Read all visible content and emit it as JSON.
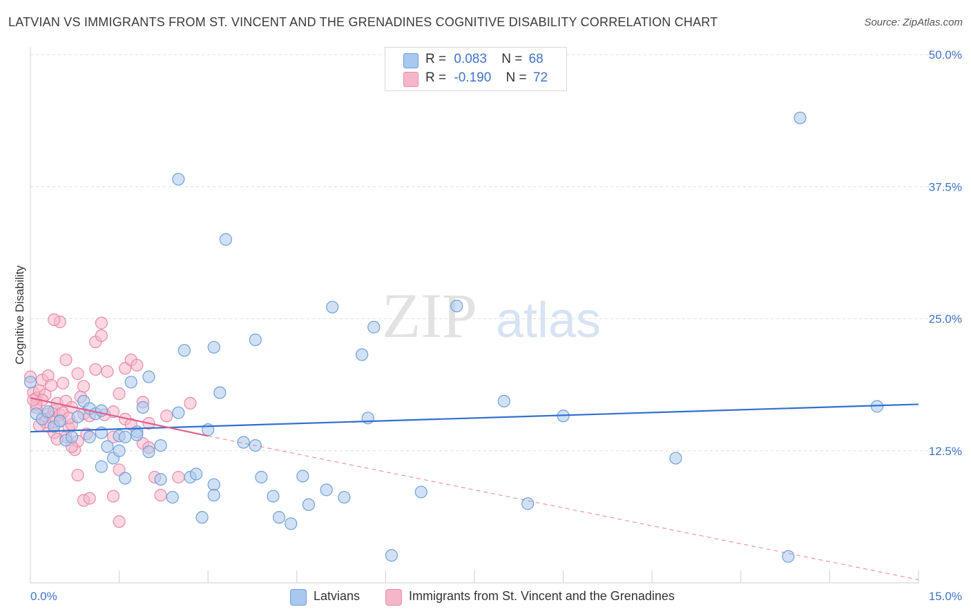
{
  "title": "LATVIAN VS IMMIGRANTS FROM ST. VINCENT AND THE GRENADINES COGNITIVE DISABILITY CORRELATION CHART",
  "source": "Source: ZipAtlas.com",
  "watermark": {
    "zip": "ZIP",
    "atlas": "atlas"
  },
  "colors": {
    "latvian_fill": "#a9c8ef",
    "latvian_stroke": "#6f9fd8",
    "latvian_line": "#2f6fce",
    "svg_fill": "#f6b6ca",
    "svg_stroke": "#e88aa8",
    "svg_line": "#e0608a",
    "tick_text": "#3f73c8",
    "grid": "#dddddd"
  },
  "legend": {
    "rows": [
      {
        "r_label": "R =",
        "r_value": "0.083",
        "n_label": "N =",
        "n_value": "68"
      },
      {
        "r_label": "R =",
        "r_value": "-0.190",
        "n_label": "N =",
        "n_value": "72"
      }
    ]
  },
  "bottom_legend": {
    "series1": "Latvians",
    "series2": "Immigrants from St. Vincent and the Grenadines"
  },
  "chart_data": {
    "type": "scatter",
    "ylabel": "Cognitive Disability",
    "xlim": [
      0,
      15
    ],
    "ylim": [
      0,
      50
    ],
    "x_tick_labels": [
      "0.0%",
      "15.0%"
    ],
    "y_ticks": [
      12.5,
      25.0,
      37.5,
      50.0
    ],
    "y_tick_labels": [
      "12.5%",
      "25.0%",
      "37.5%",
      "50.0%"
    ],
    "grid": true,
    "series": [
      {
        "name": "Latvians",
        "points": [
          [
            0.0,
            19.0
          ],
          [
            0.1,
            16.0
          ],
          [
            0.2,
            15.5
          ],
          [
            0.3,
            16.2
          ],
          [
            0.4,
            14.8
          ],
          [
            0.5,
            15.3
          ],
          [
            0.6,
            13.5
          ],
          [
            0.7,
            13.8
          ],
          [
            0.8,
            15.7
          ],
          [
            0.9,
            17.2
          ],
          [
            1.0,
            16.5
          ],
          [
            1.0,
            13.8
          ],
          [
            1.1,
            16.0
          ],
          [
            1.2,
            14.2
          ],
          [
            1.2,
            11.0
          ],
          [
            1.3,
            12.9
          ],
          [
            1.4,
            11.8
          ],
          [
            1.5,
            12.5
          ],
          [
            1.5,
            13.9
          ],
          [
            1.6,
            13.8
          ],
          [
            1.6,
            9.9
          ],
          [
            1.7,
            19.0
          ],
          [
            1.8,
            14.3
          ],
          [
            1.8,
            14.0
          ],
          [
            1.9,
            16.6
          ],
          [
            2.0,
            12.4
          ],
          [
            2.0,
            19.5
          ],
          [
            2.2,
            9.8
          ],
          [
            2.2,
            13.0
          ],
          [
            2.4,
            8.1
          ],
          [
            2.5,
            16.1
          ],
          [
            2.5,
            38.2
          ],
          [
            2.6,
            22.0
          ],
          [
            2.7,
            10.0
          ],
          [
            2.8,
            10.3
          ],
          [
            2.9,
            6.2
          ],
          [
            3.0,
            14.5
          ],
          [
            3.1,
            22.3
          ],
          [
            3.1,
            9.3
          ],
          [
            3.1,
            8.3
          ],
          [
            3.2,
            18.0
          ],
          [
            3.3,
            32.5
          ],
          [
            3.6,
            13.3
          ],
          [
            3.8,
            13.0
          ],
          [
            3.8,
            23.0
          ],
          [
            3.9,
            10.0
          ],
          [
            4.1,
            8.2
          ],
          [
            4.2,
            6.2
          ],
          [
            4.4,
            5.6
          ],
          [
            4.6,
            10.1
          ],
          [
            4.7,
            7.4
          ],
          [
            5.0,
            8.8
          ],
          [
            5.1,
            26.1
          ],
          [
            5.3,
            8.1
          ],
          [
            5.6,
            21.6
          ],
          [
            5.7,
            15.6
          ],
          [
            5.8,
            24.2
          ],
          [
            6.1,
            2.6
          ],
          [
            6.6,
            8.6
          ],
          [
            7.2,
            26.2
          ],
          [
            8.0,
            17.2
          ],
          [
            8.4,
            7.5
          ],
          [
            9.0,
            15.8
          ],
          [
            10.9,
            11.8
          ],
          [
            12.8,
            2.5
          ],
          [
            13.0,
            44.0
          ],
          [
            14.3,
            16.7
          ],
          [
            1.2,
            16.3
          ]
        ],
        "trend": {
          "x": [
            0,
            15
          ],
          "y": [
            14.3,
            16.9
          ]
        }
      },
      {
        "name": "Immigrants from St. Vincent and the Grenadines",
        "points": [
          [
            0.0,
            19.5
          ],
          [
            0.05,
            18.0
          ],
          [
            0.1,
            17.5
          ],
          [
            0.1,
            16.6
          ],
          [
            0.15,
            18.2
          ],
          [
            0.2,
            19.2
          ],
          [
            0.25,
            17.8
          ],
          [
            0.3,
            16.0
          ],
          [
            0.3,
            14.8
          ],
          [
            0.35,
            15.7
          ],
          [
            0.4,
            16.3
          ],
          [
            0.4,
            14.2
          ],
          [
            0.45,
            17.0
          ],
          [
            0.5,
            15.9
          ],
          [
            0.5,
            15.4
          ],
          [
            0.55,
            16.1
          ],
          [
            0.6,
            13.8
          ],
          [
            0.6,
            17.2
          ],
          [
            0.65,
            14.7
          ],
          [
            0.7,
            16.6
          ],
          [
            0.7,
            15.0
          ],
          [
            0.75,
            12.6
          ],
          [
            0.8,
            19.8
          ],
          [
            0.8,
            13.4
          ],
          [
            0.85,
            17.6
          ],
          [
            0.9,
            18.6
          ],
          [
            0.9,
            16.0
          ],
          [
            0.95,
            14.1
          ],
          [
            1.0,
            15.8
          ],
          [
            1.1,
            22.8
          ],
          [
            1.1,
            20.2
          ],
          [
            1.2,
            24.6
          ],
          [
            1.2,
            23.4
          ],
          [
            1.3,
            20.0
          ],
          [
            1.4,
            16.2
          ],
          [
            1.4,
            13.8
          ],
          [
            1.5,
            17.9
          ],
          [
            1.5,
            10.7
          ],
          [
            1.6,
            20.3
          ],
          [
            1.6,
            15.5
          ],
          [
            1.7,
            21.1
          ],
          [
            1.7,
            15.0
          ],
          [
            1.8,
            20.6
          ],
          [
            1.9,
            17.1
          ],
          [
            1.9,
            13.2
          ],
          [
            2.0,
            15.1
          ],
          [
            2.0,
            12.8
          ],
          [
            2.1,
            10.0
          ],
          [
            2.2,
            8.3
          ],
          [
            2.3,
            15.8
          ],
          [
            2.5,
            10.0
          ],
          [
            2.7,
            17.0
          ],
          [
            1.4,
            8.2
          ],
          [
            0.5,
            24.7
          ],
          [
            0.4,
            24.9
          ],
          [
            0.6,
            21.1
          ],
          [
            0.3,
            19.6
          ],
          [
            0.2,
            17.3
          ],
          [
            0.1,
            16.9
          ],
          [
            0.7,
            12.9
          ],
          [
            0.9,
            7.8
          ],
          [
            1.0,
            8.0
          ],
          [
            1.5,
            5.8
          ],
          [
            0.8,
            10.2
          ],
          [
            0.35,
            18.7
          ],
          [
            0.45,
            13.6
          ],
          [
            0.25,
            15.2
          ],
          [
            0.15,
            14.9
          ],
          [
            0.55,
            18.9
          ],
          [
            0.65,
            15.6
          ],
          [
            0.05,
            17.3
          ],
          [
            1.25,
            15.9
          ]
        ],
        "trend": {
          "x": [
            0,
            3.0
          ],
          "y": [
            17.5,
            13.9
          ]
        },
        "trend_extended": {
          "x": [
            3.0,
            15
          ],
          "y": [
            13.9,
            0.3
          ]
        }
      }
    ]
  }
}
